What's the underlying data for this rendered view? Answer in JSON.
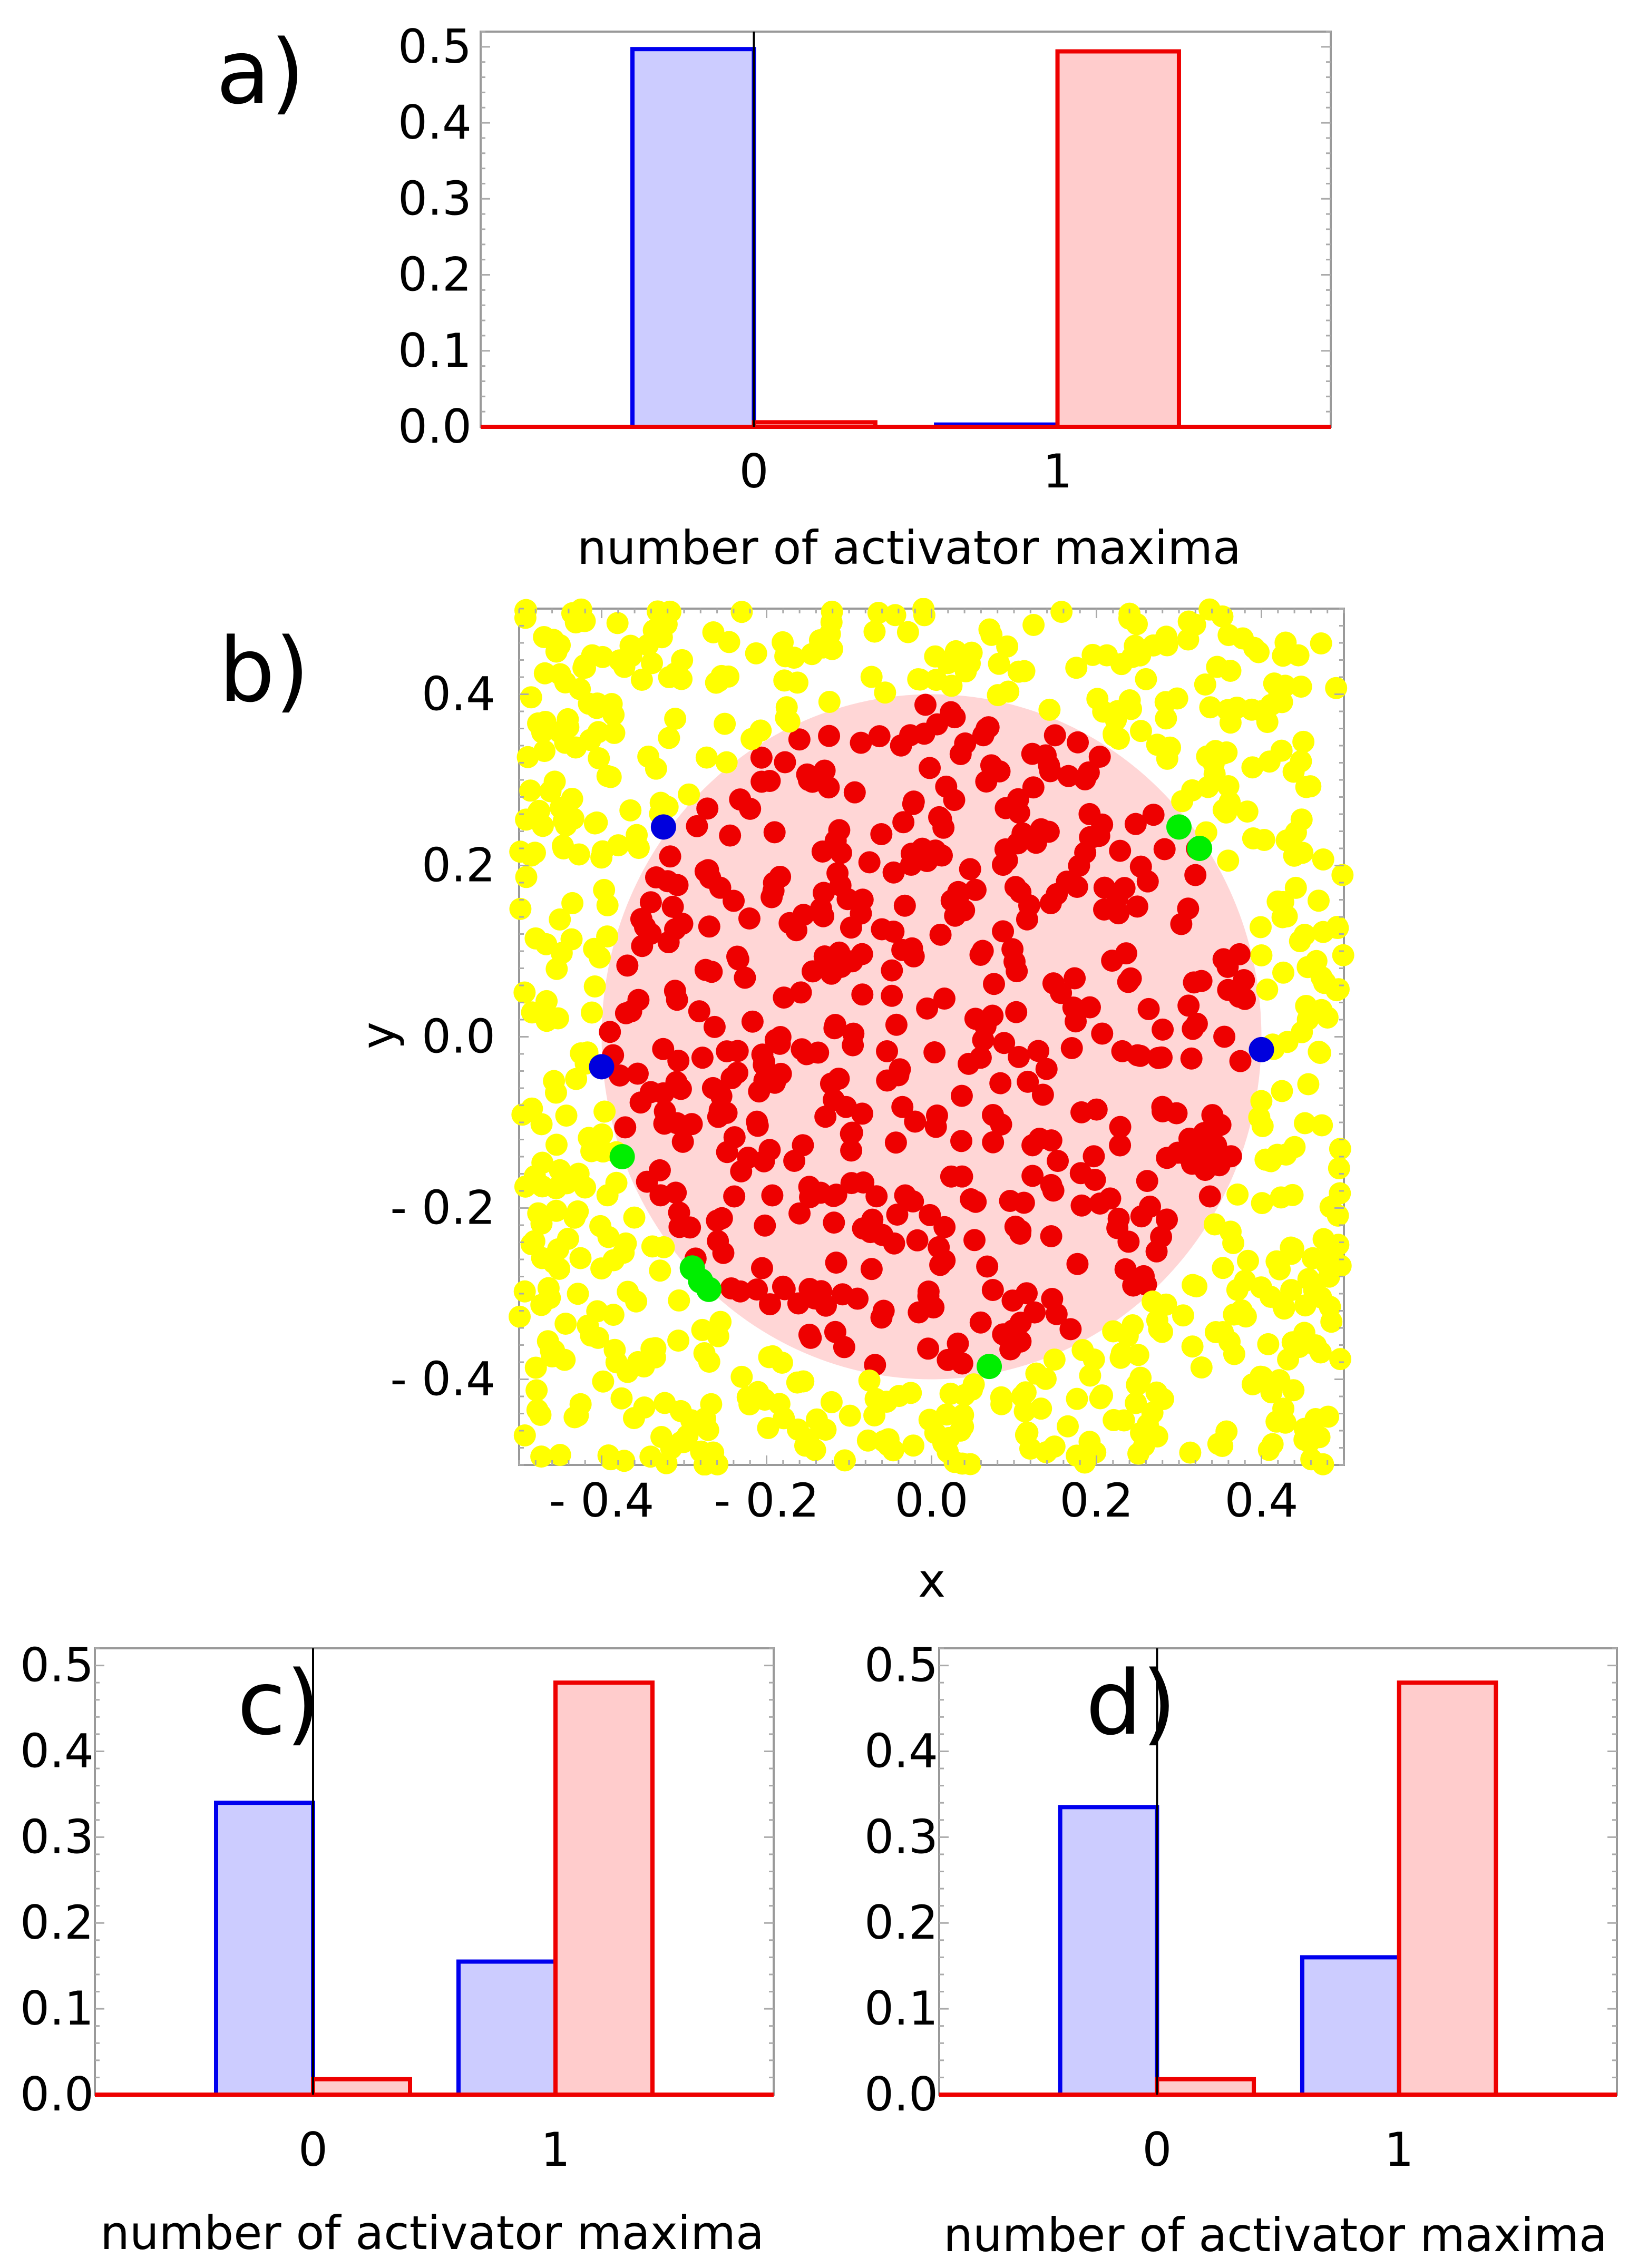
{
  "chart_data": [
    {
      "id": "a",
      "type": "bar",
      "panel_label": "a)",
      "title": "",
      "xlabel": "number of activator maxima",
      "ylabel": "",
      "categories": [
        "0",
        "1"
      ],
      "ylim": [
        0,
        0.52
      ],
      "xlim": [
        -0.9,
        1.9
      ],
      "yticks": [
        "0.0",
        "0.1",
        "0.2",
        "0.3",
        "0.4",
        "0.5"
      ],
      "series": [
        {
          "name": "blue",
          "stroke": "#0000ee",
          "fill": "#ccccff",
          "values": [
            0.497,
            0.003
          ]
        },
        {
          "name": "red",
          "stroke": "#ee0000",
          "fill": "#ffcccc",
          "values": [
            0.006,
            0.494
          ]
        }
      ]
    },
    {
      "id": "b",
      "type": "scatter",
      "panel_label": "b)",
      "title": "",
      "xlabel": "x",
      "ylabel": "y",
      "xlim": [
        -0.5,
        0.5
      ],
      "ylim": [
        -0.5,
        0.5
      ],
      "xticks": [
        "- 0.4",
        "- 0.2",
        "0.0",
        "0.2",
        "0.4"
      ],
      "yticks": [
        "- 0.4",
        "- 0.2",
        "0.0",
        "0.2",
        "0.4"
      ],
      "disk": {
        "cx": 0.0,
        "cy": 0.0,
        "r": 0.4,
        "fill": "#ffd6d6"
      },
      "random_cloud": {
        "count_outside": 620,
        "count_inside": 470,
        "outside_color": "#ffff00",
        "inside_color": "#ee0000",
        "seed": 7
      },
      "series": [
        {
          "name": "yellow",
          "color": "#ffff00",
          "points": []
        },
        {
          "name": "red",
          "color": "#ee0000",
          "points": []
        },
        {
          "name": "blue",
          "color": "#0000dd",
          "points": [
            [
              -0.325,
              0.245
            ],
            [
              -0.4,
              -0.035
            ],
            [
              0.4,
              -0.015
            ]
          ]
        },
        {
          "name": "green",
          "color": "#00ee00",
          "points": [
            [
              0.3,
              0.245
            ],
            [
              0.325,
              0.22
            ],
            [
              -0.375,
              -0.14
            ],
            [
              -0.29,
              -0.27
            ],
            [
              -0.28,
              -0.285
            ],
            [
              -0.27,
              -0.295
            ],
            [
              0.07,
              -0.385
            ]
          ]
        }
      ]
    },
    {
      "id": "c",
      "type": "bar",
      "panel_label": "c)",
      "title": "",
      "xlabel": "number of activator maxima",
      "ylabel": "",
      "categories": [
        "0",
        "1"
      ],
      "ylim": [
        0,
        0.52
      ],
      "xlim": [
        -0.9,
        1.9
      ],
      "yticks": [
        "0.0",
        "0.1",
        "0.2",
        "0.3",
        "0.4",
        "0.5"
      ],
      "series": [
        {
          "name": "blue",
          "stroke": "#0000ee",
          "fill": "#ccccff",
          "values": [
            0.34,
            0.155
          ]
        },
        {
          "name": "red",
          "stroke": "#ee0000",
          "fill": "#ffcccc",
          "values": [
            0.018,
            0.48
          ]
        }
      ]
    },
    {
      "id": "d",
      "type": "bar",
      "panel_label": "d)",
      "title": "",
      "xlabel": "number of activator maxima",
      "ylabel": "",
      "categories": [
        "0",
        "1"
      ],
      "ylim": [
        0,
        0.52
      ],
      "xlim": [
        -0.9,
        1.9
      ],
      "yticks": [
        "0.0",
        "0.1",
        "0.2",
        "0.3",
        "0.4",
        "0.5"
      ],
      "series": [
        {
          "name": "blue",
          "stroke": "#0000ee",
          "fill": "#ccccff",
          "values": [
            0.335,
            0.16
          ]
        },
        {
          "name": "red",
          "stroke": "#ee0000",
          "fill": "#ffcccc",
          "values": [
            0.018,
            0.48
          ]
        }
      ]
    }
  ]
}
